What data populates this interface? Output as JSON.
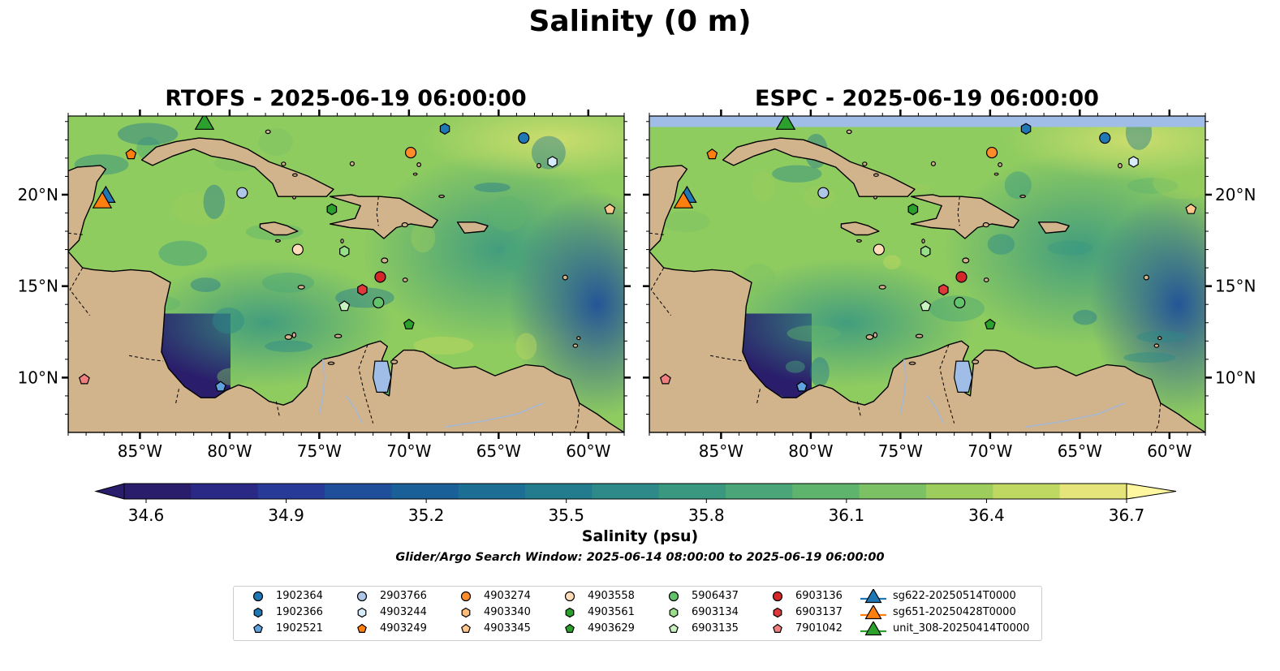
{
  "figure": {
    "suptitle": "Salinity (0 m)",
    "panels": [
      {
        "title": "RTOFS - 2025-06-19 06:00:00"
      },
      {
        "title": "ESPC - 2025-06-19 06:00:00"
      }
    ],
    "lon_ticks": [
      "85°W",
      "80°W",
      "75°W",
      "70°W",
      "65°W",
      "60°W"
    ],
    "lat_ticks": [
      "20°N",
      "15°N",
      "10°N"
    ],
    "extent": {
      "lon": [
        -89,
        -58
      ],
      "lat": [
        7,
        24.3
      ]
    },
    "colorbar": {
      "label": "Salinity (psu)",
      "ticks": [
        "34.6",
        "34.9",
        "35.2",
        "35.5",
        "35.8",
        "36.1",
        "36.4",
        "36.7"
      ],
      "range": [
        34.6,
        36.7
      ],
      "colors": [
        "#2a1d6b",
        "#2a2a86",
        "#283a98",
        "#1f4f9a",
        "#195f98",
        "#1d6e94",
        "#237b8e",
        "#2d8a88",
        "#3a9881",
        "#4aa678",
        "#5fb46d",
        "#7cc164",
        "#9ccd5d",
        "#bfd862",
        "#e4e47a"
      ]
    },
    "search_window": "Glider/Argo Search Window: 2025-06-14 08:00:00 to 2025-06-19 06:00:00"
  },
  "colors": {
    "land": "#d2b48c",
    "ocean_deep": "#2a1d6b",
    "ocean_mid": "#3e9a80",
    "ocean_high": "#8fcc60",
    "nodata": "#9fbde6",
    "river": "#a4b8d4"
  },
  "legend": [
    {
      "label": "1902364",
      "marker": "circle",
      "color": "#1f77b4"
    },
    {
      "label": "1902366",
      "marker": "hexagon",
      "color": "#1f77b4"
    },
    {
      "label": "1902521",
      "marker": "pentagon",
      "color": "#5fa2dd"
    },
    {
      "label": "2903766",
      "marker": "circle",
      "color": "#aec7e8"
    },
    {
      "label": "4903244",
      "marker": "hexagon",
      "color": "#d6ecfa"
    },
    {
      "label": "4903249",
      "marker": "pentagon",
      "color": "#ff7f0e"
    },
    {
      "label": "4903274",
      "marker": "circle",
      "color": "#ff8c2a"
    },
    {
      "label": "4903340",
      "marker": "hexagon",
      "color": "#ffbb78"
    },
    {
      "label": "4903345",
      "marker": "pentagon",
      "color": "#ffc88f"
    },
    {
      "label": "4903558",
      "marker": "circle",
      "color": "#ffddb8"
    },
    {
      "label": "4903561",
      "marker": "hexagon",
      "color": "#2ca02c"
    },
    {
      "label": "4903629",
      "marker": "pentagon",
      "color": "#2ca02c"
    },
    {
      "label": "5906437",
      "marker": "circle",
      "color": "#62c46a"
    },
    {
      "label": "6903134",
      "marker": "hexagon",
      "color": "#98df8a"
    },
    {
      "label": "6903135",
      "marker": "pentagon",
      "color": "#c9f2c0"
    },
    {
      "label": "6903136",
      "marker": "circle",
      "color": "#d62728"
    },
    {
      "label": "6903137",
      "marker": "hexagon",
      "color": "#e0393b"
    },
    {
      "label": "7901042",
      "marker": "pentagon",
      "color": "#f07f7f"
    },
    {
      "label": "sg622-20250514T0000",
      "marker": "triangle",
      "color": "#1f77b4"
    },
    {
      "label": "sg651-20250428T0000",
      "marker": "triangle",
      "color": "#ff7f0e"
    },
    {
      "label": "unit_308-20250414T0000",
      "marker": "triangle",
      "color": "#2ca02c"
    }
  ],
  "floats": [
    {
      "id": "1902364",
      "lon": -63.6,
      "lat": 23.1
    },
    {
      "id": "1902366",
      "lon": -68.0,
      "lat": 23.6
    },
    {
      "id": "1902521",
      "lon": -80.5,
      "lat": 9.5
    },
    {
      "id": "2903766",
      "lon": -79.3,
      "lat": 20.1
    },
    {
      "id": "4903244",
      "lon": -62.0,
      "lat": 21.8
    },
    {
      "id": "4903249",
      "lon": -85.5,
      "lat": 22.2
    },
    {
      "id": "4903274",
      "lon": -69.9,
      "lat": 22.3
    },
    {
      "id": "4903340",
      "lon": -74.3,
      "lat": 19.2
    },
    {
      "id": "4903345",
      "lon": -58.8,
      "lat": 19.2
    },
    {
      "id": "4903558",
      "lon": -76.2,
      "lat": 17.0
    },
    {
      "id": "4903561",
      "lon": -74.3,
      "lat": 19.2
    },
    {
      "id": "4903629",
      "lon": -70.0,
      "lat": 12.9
    },
    {
      "id": "5906437",
      "lon": -71.7,
      "lat": 14.1
    },
    {
      "id": "6903134",
      "lon": -73.6,
      "lat": 16.9
    },
    {
      "id": "6903135",
      "lon": -73.6,
      "lat": 13.9
    },
    {
      "id": "6903136",
      "lon": -71.6,
      "lat": 15.5
    },
    {
      "id": "6903137",
      "lon": -72.6,
      "lat": 14.8
    },
    {
      "id": "7901042",
      "lon": -88.1,
      "lat": 9.9
    }
  ],
  "gliders": [
    {
      "id": "sg622-20250514T0000",
      "lon": -86.9,
      "lat": 20.0
    },
    {
      "id": "sg651-20250428T0000",
      "lon": -87.1,
      "lat": 19.7
    },
    {
      "id": "unit_308-20250414T0000",
      "lon": -81.4,
      "lat": 24.0
    }
  ]
}
